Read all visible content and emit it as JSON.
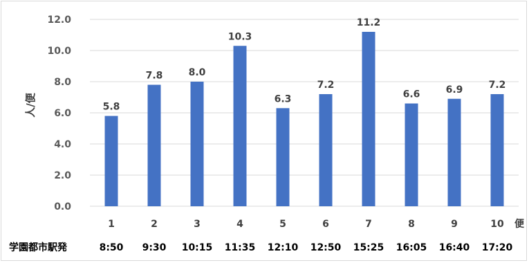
{
  "chart_data": {
    "type": "bar",
    "categories": [
      "1",
      "2",
      "3",
      "4",
      "5",
      "6",
      "7",
      "8",
      "9",
      "10"
    ],
    "values": [
      5.8,
      7.8,
      8.0,
      10.3,
      6.3,
      7.2,
      11.2,
      6.6,
      6.9,
      7.2
    ],
    "data_labels": [
      "5.8",
      "7.8",
      "8.0",
      "10.3",
      "6.3",
      "7.2",
      "11.2",
      "6.6",
      "6.9",
      "7.2"
    ],
    "departure_times": [
      "8:50",
      "9:30",
      "10:15",
      "11:35",
      "12:10",
      "12:50",
      "15:25",
      "16:05",
      "16:40",
      "17:20"
    ],
    "departure_row_label": "学園都市駅発",
    "ylabel": "人/便",
    "xlabel": "便",
    "ylim": [
      0,
      12
    ],
    "yticks": [
      "0.0",
      "2.0",
      "4.0",
      "6.0",
      "8.0",
      "10.0",
      "12.0"
    ],
    "ytick_values": [
      0,
      2,
      4,
      6,
      8,
      10,
      12
    ],
    "grid": true,
    "bar_color": "#4472c4",
    "grid_color": "#d9d9d9"
  }
}
